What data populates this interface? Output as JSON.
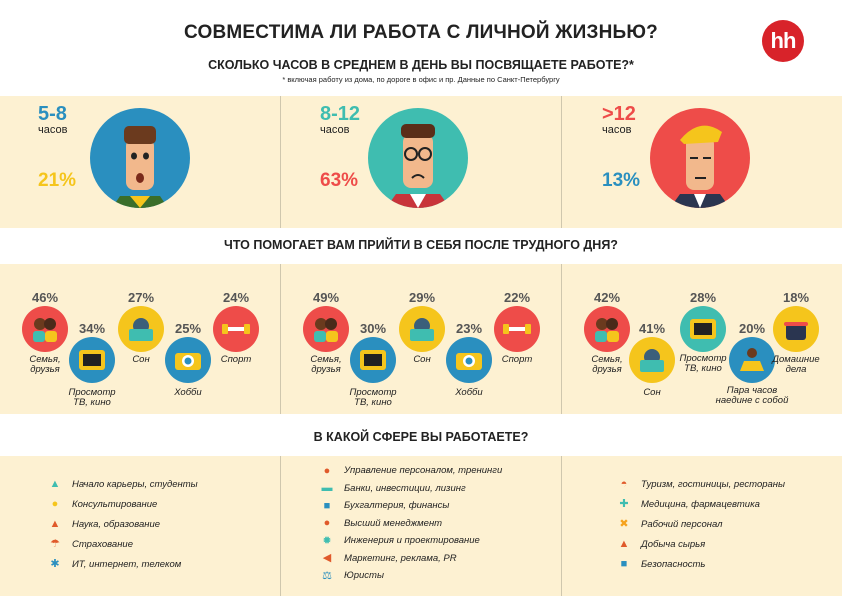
{
  "header": {
    "title": "СОВМЕСТИМА ЛИ РАБОТА С ЛИЧНОЙ ЖИЗНЬЮ?",
    "logo": "hh",
    "question": "СКОЛЬКО ЧАСОВ В СРЕДНЕМ В ДЕНЬ ВЫ ПОСВЯЩАЕТЕ РАБОТЕ?*",
    "footnote": "* включая работу из дома, по дороге в офис и пр. Данные по Санкт-Петербургу"
  },
  "colors": {
    "blue": "#2a8fbf",
    "teal": "#3fbdb0",
    "red": "#ee4c49",
    "yellow": "#f5c51c",
    "band": "#fdf1d2"
  },
  "hours": [
    {
      "range": "5-8",
      "unit": "часов",
      "percent": "21%",
      "range_color": "#2a8fbf",
      "percent_color": "#f5c51c",
      "circle_color": "#2a8fbf"
    },
    {
      "range": "8-12",
      "unit": "часов",
      "percent": "63%",
      "range_color": "#3fbdb0",
      "percent_color": "#ee4c49",
      "circle_color": "#3fbdb0"
    },
    {
      "range": ">12",
      "unit": "часов",
      "percent": "13%",
      "range_color": "#ee4c49",
      "percent_color": "#2a8fbf",
      "circle_color": "#ee4c49"
    }
  ],
  "recovery": {
    "question": "ЧТО ПОМОГАЕТ ВАМ ПРИЙТИ В СЕБЯ ПОСЛЕ ТРУДНОГО ДНЯ?",
    "groups": [
      {
        "family": "46%",
        "tv": "34%",
        "sleep": "27%",
        "hobby": "25%",
        "sport": "24%"
      },
      {
        "family": "49%",
        "tv": "30%",
        "sleep": "29%",
        "hobby": "23%",
        "sport": "22%"
      },
      {
        "family": "42%",
        "sleep": "41%",
        "tv": "28%",
        "alone": "20%",
        "home": "18%"
      }
    ],
    "labels": {
      "family": "Семья,\nдрузья",
      "tv": "Просмотр\nТВ, кино",
      "sleep": "Сон",
      "hobby": "Хобби",
      "sport": "Спорт",
      "alone": "Пара часов\nнаедине с собой",
      "home": "Домашние\nдела"
    }
  },
  "industries": {
    "question": "В КАКОЙ СФЕРЕ ВЫ РАБОТАЕТЕ?",
    "col1": [
      {
        "label": "Начало карьеры, студенты",
        "icon": "graduation-cap-icon"
      },
      {
        "label": "Консультирование",
        "icon": "lightbulb-icon"
      },
      {
        "label": "Наука, образование",
        "icon": "flask-icon"
      },
      {
        "label": "Страхование",
        "icon": "umbrella-icon"
      },
      {
        "label": "ИТ, интернет, телеком",
        "icon": "antenna-icon"
      }
    ],
    "col2": [
      {
        "label": "Управление персоналом, тренинги",
        "icon": "person-icon"
      },
      {
        "label": "Банки, инвестиции, лизинг",
        "icon": "cards-icon"
      },
      {
        "label": "Бухгалтерия, финансы",
        "icon": "calculator-icon"
      },
      {
        "label": "Высший менеджмент",
        "icon": "manager-icon"
      },
      {
        "label": "Инженерия и проектирование",
        "icon": "gear-icon"
      },
      {
        "label": "Маркетинг, реклама, PR",
        "icon": "megaphone-icon"
      },
      {
        "label": "Юристы",
        "icon": "scales-icon"
      }
    ],
    "col3": [
      {
        "label": "Туризм, гостиницы, рестораны",
        "icon": "cloche-icon"
      },
      {
        "label": "Медицина, фармацевтика",
        "icon": "medkit-icon"
      },
      {
        "label": "Рабочий персонал",
        "icon": "tools-icon"
      },
      {
        "label": "Добыча сырья",
        "icon": "oil-rig-icon"
      },
      {
        "label": "Безопасность",
        "icon": "lock-icon"
      }
    ]
  }
}
